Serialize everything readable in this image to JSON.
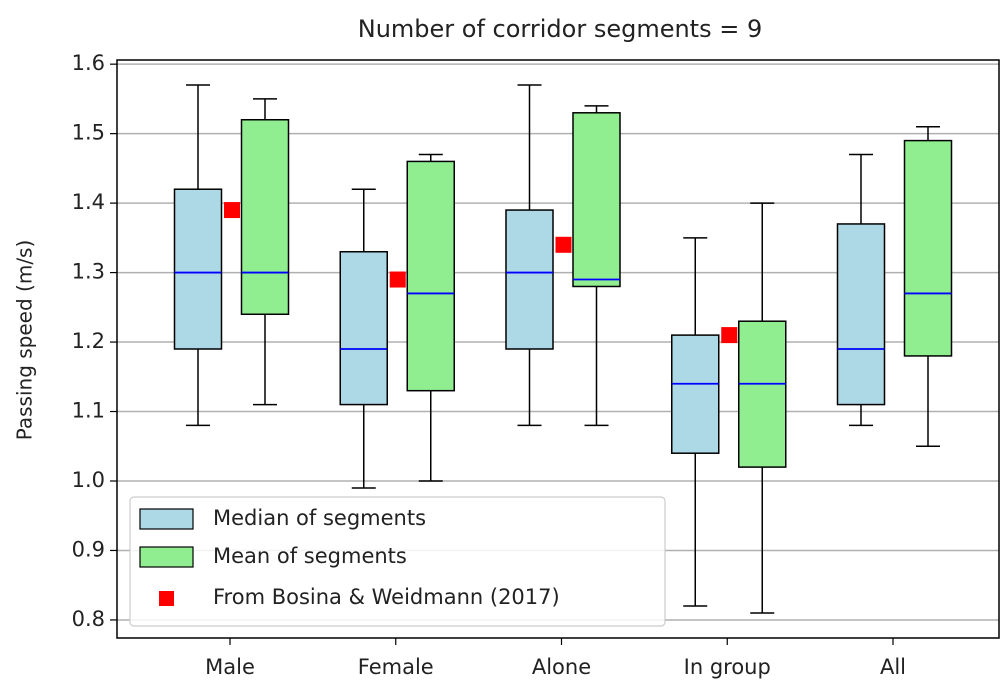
{
  "chart_data": {
    "type": "box",
    "title": "Number of corridor segments = 9",
    "y_label": "Passing speed (m/s)",
    "categories": [
      "Male",
      "Female",
      "Alone",
      "In group",
      "All"
    ],
    "ylim": [
      0.774,
      1.606
    ],
    "yticks": [
      {
        "value": 0.8,
        "label": "0.8"
      },
      {
        "value": 0.9,
        "label": "0.9"
      },
      {
        "value": 1.0,
        "label": "1.0"
      },
      {
        "value": 1.1,
        "label": "1.1"
      },
      {
        "value": 1.2,
        "label": "1.2"
      },
      {
        "value": 1.3,
        "label": "1.3"
      },
      {
        "value": 1.4,
        "label": "1.4"
      },
      {
        "value": 1.5,
        "label": "1.5"
      },
      {
        "value": 1.6,
        "label": "1.6"
      }
    ],
    "grid": true,
    "legend": "lower left",
    "series": [
      {
        "name": "Median of segments",
        "color": "#add8e6",
        "median_color": "#0000ff",
        "whisker_low": [
          1.08,
          0.99,
          1.08,
          0.82,
          1.08
        ],
        "q1": [
          1.19,
          1.11,
          1.19,
          1.04,
          1.11
        ],
        "median": [
          1.3,
          1.19,
          1.3,
          1.14,
          1.19
        ],
        "q3": [
          1.42,
          1.33,
          1.39,
          1.21,
          1.37
        ],
        "whisker_high": [
          1.57,
          1.42,
          1.57,
          1.35,
          1.47
        ]
      },
      {
        "name": "Mean of segments",
        "color": "#90ee90",
        "median_color": "#0000ff",
        "whisker_low": [
          1.11,
          1.0,
          1.08,
          0.81,
          1.05
        ],
        "q1": [
          1.24,
          1.13,
          1.28,
          1.02,
          1.18
        ],
        "median": [
          1.3,
          1.27,
          1.29,
          1.14,
          1.27
        ],
        "q3": [
          1.52,
          1.46,
          1.53,
          1.23,
          1.49
        ],
        "whisker_high": [
          1.55,
          1.47,
          1.54,
          1.4,
          1.51
        ]
      }
    ],
    "points": {
      "name": "From Bosina & Weidmann (2017)",
      "color": "#ff0000",
      "values": [
        1.39,
        1.29,
        1.34,
        1.21,
        null
      ]
    }
  }
}
